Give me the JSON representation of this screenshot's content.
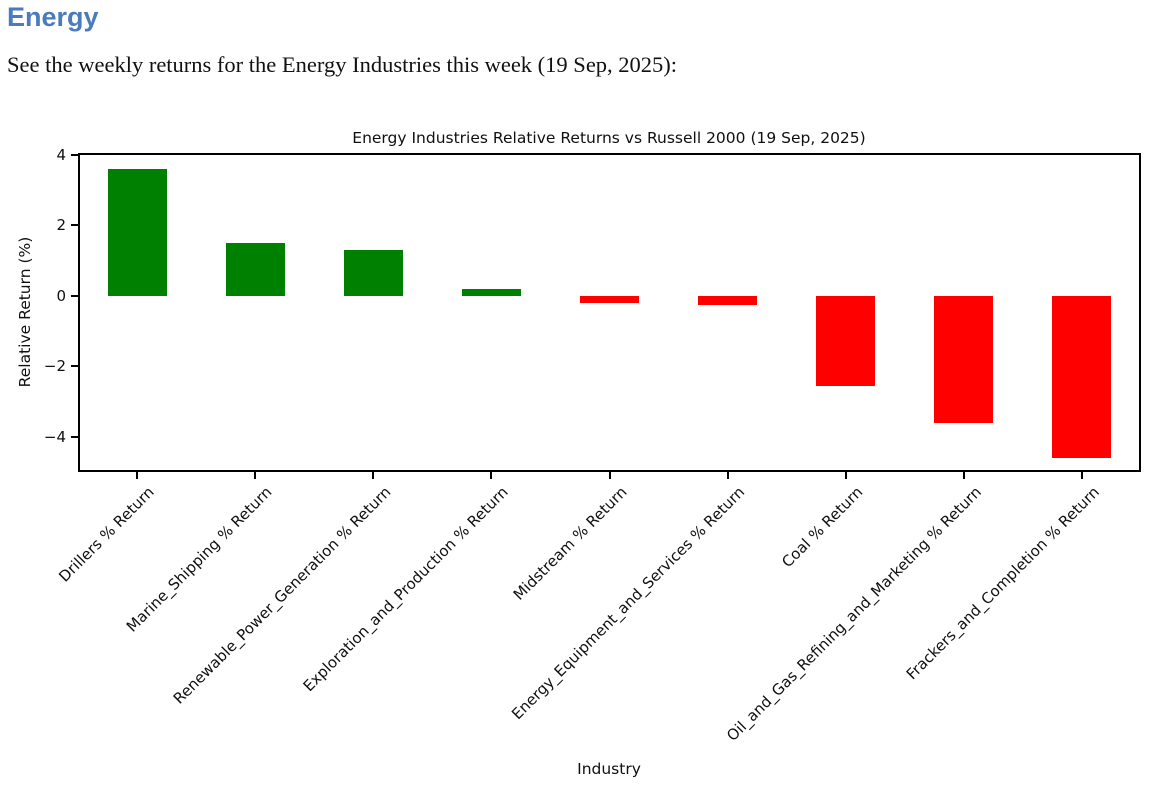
{
  "page": {
    "heading": "Energy",
    "subtitle": "See the weekly returns for the Energy Industries this week (19 Sep, 2025):"
  },
  "theme": {
    "heading_color": "#4a7bbd",
    "body_text_color": "#111111",
    "chart_text_color": "#101010"
  },
  "chart_data": {
    "type": "bar",
    "title": "Energy Industries Relative Returns vs Russell 2000 (19 Sep, 2025)",
    "xlabel": "Industry",
    "ylabel": "Relative Return (%)",
    "categories": [
      "Drillers % Return",
      "Marine_Shipping % Return",
      "Renewable_Power_Generation % Return",
      "Exploration_and_Production % Return",
      "Midstream % Return",
      "Energy_Equipment_and_Services % Return",
      "Coal % Return",
      "Oil_and_Gas_Refining_and_Marketing % Return",
      "Frackers_and_Completion % Return"
    ],
    "values": [
      3.6,
      1.5,
      1.3,
      0.2,
      -0.2,
      -0.25,
      -2.55,
      -3.6,
      -4.6
    ],
    "positive_color": "#008000",
    "negative_color": "#ff0000",
    "ylim": [
      -5.0,
      4.05
    ],
    "yticks": [
      4,
      2,
      0,
      -2,
      -4
    ],
    "xtick_rotation_deg": 45,
    "grid": false,
    "legend": null,
    "bar_width_fraction": 0.5
  }
}
